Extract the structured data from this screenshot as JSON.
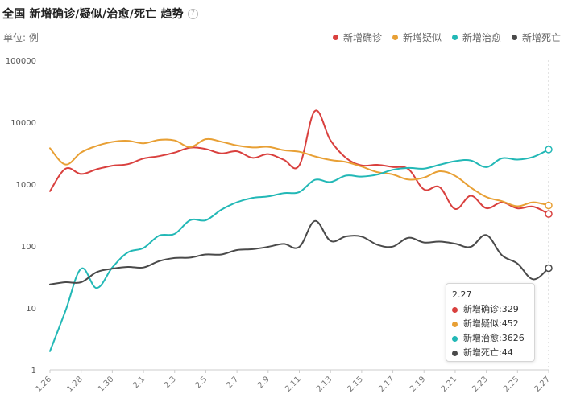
{
  "header": {
    "title": "全国 新增确诊/疑似/治愈/死亡 趋势",
    "help_icon": "?"
  },
  "unit_label": "单位: 例",
  "colors": {
    "axis": "#cccccc",
    "grid": "#eeeeee",
    "hover_line": "#c8c8c8"
  },
  "tooltip": {
    "date": "2.27",
    "rows": [
      {
        "label": "新增确诊",
        "value": "329",
        "color": "#d9403e"
      },
      {
        "label": "新增疑似",
        "value": "452",
        "color": "#e8a035"
      },
      {
        "label": "新增治愈",
        "value": "3626",
        "color": "#22b8b6"
      },
      {
        "label": "新增死亡",
        "value": "44",
        "color": "#4a4a4a"
      }
    ]
  },
  "chart_data": {
    "type": "line",
    "title": "全国 新增确诊/疑似/治愈/死亡 趋势",
    "ylabel": "单位: 例",
    "y_scale": "log",
    "ylim": [
      1,
      100000
    ],
    "y_ticks": [
      "100000",
      "10000",
      "1000",
      "100",
      "10",
      "1"
    ],
    "x": [
      "1.26",
      "1.27",
      "1.28",
      "1.29",
      "1.30",
      "1.31",
      "2.1",
      "2.2",
      "2.3",
      "2.4",
      "2.5",
      "2.6",
      "2.7",
      "2.8",
      "2.9",
      "2.10",
      "2.11",
      "2.12",
      "2.13",
      "2.14",
      "2.15",
      "2.16",
      "2.17",
      "2.18",
      "2.19",
      "2.20",
      "2.21",
      "2.22",
      "2.23",
      "2.24",
      "2.25",
      "2.26",
      "2.27"
    ],
    "x_tick_labels": [
      "1.26",
      "1.28",
      "1.30",
      "2.1",
      "2.3",
      "2.5",
      "2.7",
      "2.9",
      "2.11",
      "2.13",
      "2.15",
      "2.17",
      "2.19",
      "2.21",
      "2.23",
      "2.25",
      "2.27"
    ],
    "legend_position": "top-right",
    "grid": false,
    "series": [
      {
        "name": "新增确诊",
        "color": "#d9403e",
        "values": [
          769,
          1771,
          1459,
          1737,
          1982,
          2102,
          2590,
          2829,
          3235,
          3887,
          3694,
          3143,
          3399,
          2656,
          3062,
          2478,
          2015,
          15152,
          5090,
          2641,
          2009,
          2048,
          1886,
          1749,
          820,
          892,
          397,
          648,
          409,
          508,
          406,
          433,
          329
        ]
      },
      {
        "name": "新增疑似",
        "color": "#e8a035",
        "values": [
          3806,
          2077,
          3248,
          4148,
          4812,
          5019,
          4562,
          5173,
          5072,
          3971,
          5328,
          4833,
          4214,
          3916,
          4008,
          3536,
          3342,
          2807,
          2450,
          2277,
          1918,
          1563,
          1432,
          1185,
          1277,
          1614,
          1361,
          882,
          620,
          530,
          439,
          508,
          452
        ]
      },
      {
        "name": "新增治愈",
        "color": "#22b8b6",
        "values": [
          2,
          9,
          43,
          21,
          45,
          79,
          93,
          147,
          157,
          262,
          261,
          387,
          510,
          600,
          632,
          716,
          744,
          1171,
          1081,
          1373,
          1323,
          1425,
          1701,
          1824,
          1779,
          2054,
          2345,
          2411,
          1881,
          2614,
          2487,
          2749,
          3626
        ]
      },
      {
        "name": "新增死亡",
        "color": "#4a4a4a",
        "values": [
          24,
          26,
          26,
          38,
          43,
          46,
          45,
          57,
          64,
          65,
          73,
          73,
          86,
          89,
          97,
          108,
          97,
          254,
          121,
          143,
          142,
          105,
          98,
          136,
          114,
          118,
          109,
          97,
          150,
          71,
          52,
          29,
          44
        ]
      }
    ],
    "highlight": "2.27"
  }
}
